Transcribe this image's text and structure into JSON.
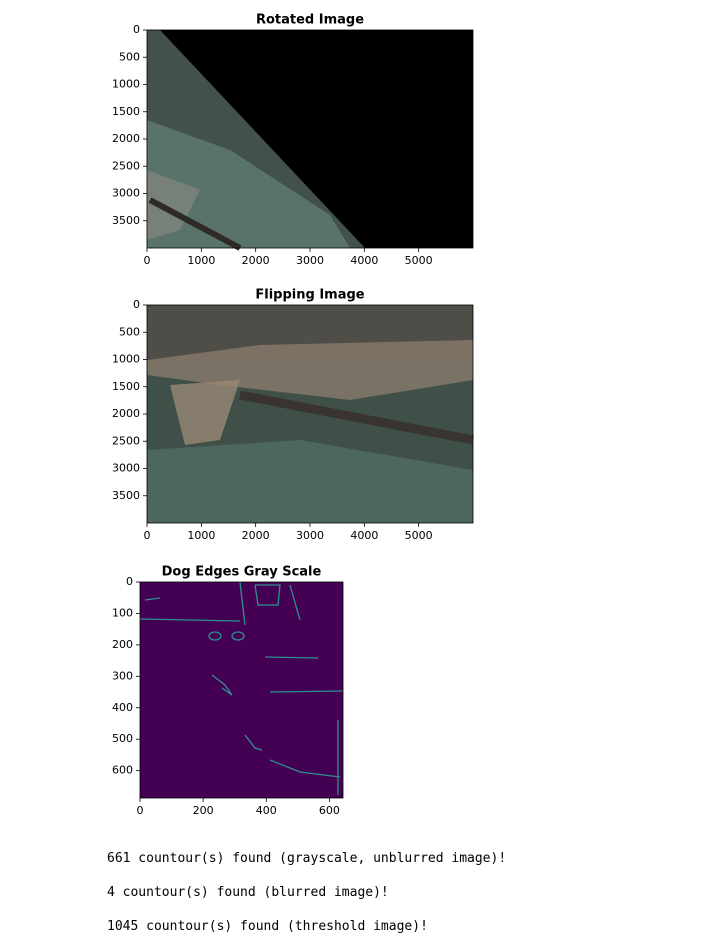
{
  "plots": [
    {
      "title": "Rotated Image",
      "xlim": [
        0,
        6000
      ],
      "ylim": [
        0,
        4000
      ],
      "xticks": [
        0,
        1000,
        2000,
        3000,
        4000,
        5000
      ],
      "yticks": [
        0,
        500,
        1000,
        1500,
        2000,
        2500,
        3000,
        3500
      ]
    },
    {
      "title": "Flipping Image",
      "xlim": [
        0,
        6000
      ],
      "ylim": [
        0,
        4000
      ],
      "xticks": [
        0,
        1000,
        2000,
        3000,
        4000,
        5000
      ],
      "yticks": [
        0,
        500,
        1000,
        1500,
        2000,
        2500,
        3000,
        3500
      ]
    },
    {
      "title": "Dog Edges Gray Scale",
      "xlim": [
        0,
        643
      ],
      "ylim": [
        0,
        687
      ],
      "xticks": [
        0,
        200,
        400,
        600
      ],
      "yticks": [
        0,
        100,
        200,
        300,
        400,
        500,
        600
      ]
    }
  ],
  "output": [
    "661 countour(s) found (grayscale, unblurred image)!",
    "4 countour(s) found (blurred image)!",
    "1045 countour(s) found (threshold image)!"
  ]
}
